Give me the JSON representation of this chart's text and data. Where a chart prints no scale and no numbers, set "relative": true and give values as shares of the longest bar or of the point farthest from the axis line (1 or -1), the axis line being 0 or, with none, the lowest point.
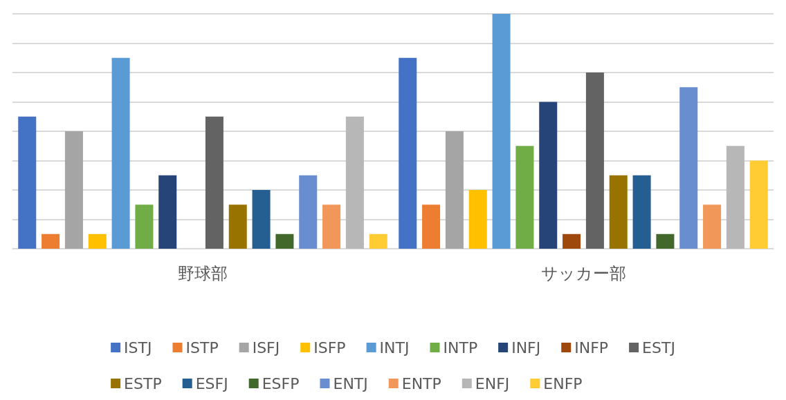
{
  "chart_data": {
    "type": "bar",
    "relative": true,
    "grid": "y",
    "legend": "bottom",
    "categories": [
      "野球部",
      "サッカー部"
    ],
    "series": [
      {
        "name": "ISTJ",
        "color": "#4472c4",
        "values": [
          0.5625,
          0.8125
        ]
      },
      {
        "name": "ISTP",
        "color": "#ed7d31",
        "values": [
          0.0625,
          0.1875
        ]
      },
      {
        "name": "ISFJ",
        "color": "#a5a5a5",
        "values": [
          0.5,
          0.5
        ]
      },
      {
        "name": "ISFP",
        "color": "#ffc000",
        "values": [
          0.0625,
          0.25
        ]
      },
      {
        "name": "INTJ",
        "color": "#5b9bd5",
        "values": [
          0.8125,
          1
        ]
      },
      {
        "name": "INTP",
        "color": "#70ad47",
        "values": [
          0.1875,
          0.4375
        ]
      },
      {
        "name": "INFJ",
        "color": "#264478",
        "values": [
          0.3125,
          0.625
        ]
      },
      {
        "name": "INFP",
        "color": "#9e480e",
        "values": [
          0,
          0.0625
        ]
      },
      {
        "name": "ESTJ",
        "color": "#636363",
        "values": [
          0.5625,
          0.75
        ]
      },
      {
        "name": "ESTP",
        "color": "#997300",
        "values": [
          0.1875,
          0.3125
        ]
      },
      {
        "name": "ESFJ",
        "color": "#255e91",
        "values": [
          0.25,
          0.3125
        ]
      },
      {
        "name": "ESFP",
        "color": "#43682b",
        "values": [
          0.0625,
          0.0625
        ]
      },
      {
        "name": "ENTJ",
        "color": "#698ed0",
        "values": [
          0.3125,
          0.6875
        ]
      },
      {
        "name": "ENTP",
        "color": "#f1975a",
        "values": [
          0.1875,
          0.1875
        ]
      },
      {
        "name": "ENFJ",
        "color": "#b7b7b7",
        "values": [
          0.5625,
          0.4375
        ]
      },
      {
        "name": "ENFP",
        "color": "#ffcd33",
        "values": [
          0.0625,
          0.375
        ]
      }
    ]
  }
}
